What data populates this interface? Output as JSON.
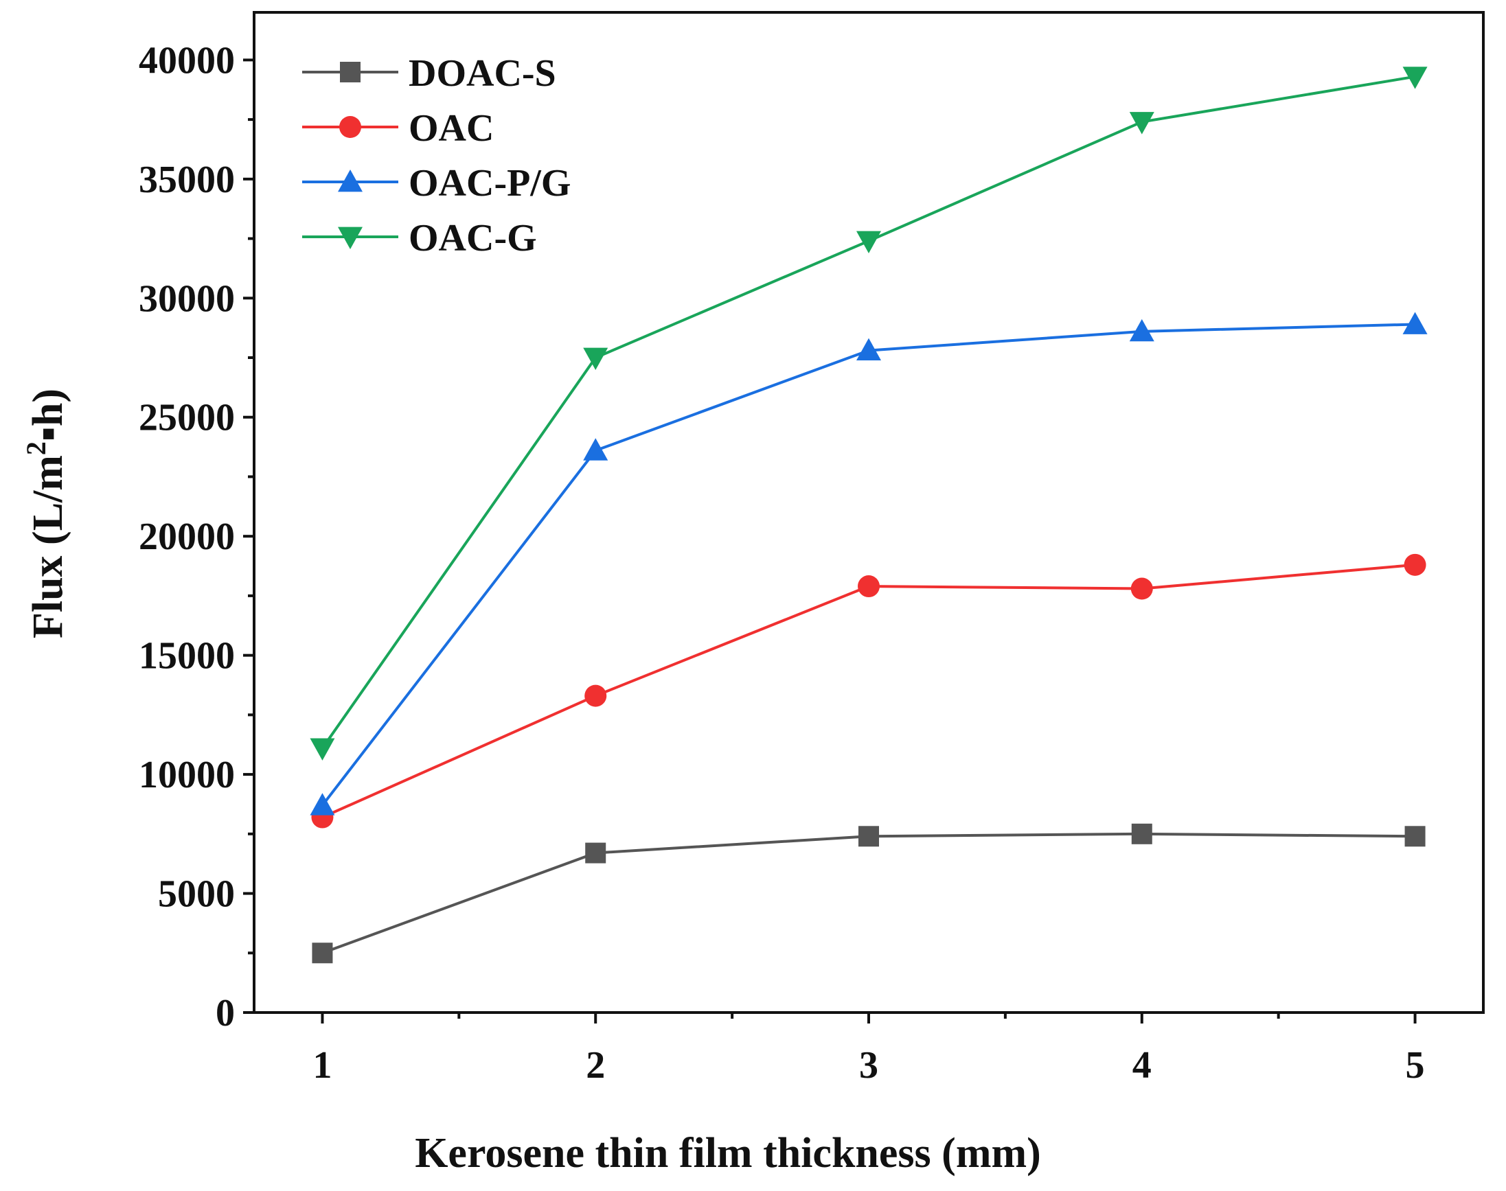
{
  "chart_data": {
    "type": "line",
    "title": "",
    "xlabel": "Kerosene thin film thickness (mm)",
    "ylabel": "Flux (L/m2·h)",
    "ylabel_parts": {
      "main": "Flux (L/m",
      "sup": "2",
      "sep": "▪",
      "end": "h)"
    },
    "x": [
      1,
      2,
      3,
      4,
      5
    ],
    "x_tick_labels": [
      "1",
      "2",
      "3",
      "4",
      "5"
    ],
    "xlim": [
      0.75,
      5.25
    ],
    "ylim": [
      0,
      42000
    ],
    "y_ticks": [
      0,
      5000,
      10000,
      15000,
      20000,
      25000,
      30000,
      35000,
      40000
    ],
    "y_tick_labels": [
      "0",
      "5000",
      "10000",
      "15000",
      "20000",
      "25000",
      "30000",
      "35000",
      "40000"
    ],
    "grid": false,
    "legend_position": "top-left",
    "series": [
      {
        "name": "DOAC-S",
        "color": "#555555",
        "marker": "square",
        "values": [
          2500,
          6700,
          7400,
          7500,
          7400
        ]
      },
      {
        "name": "OAC",
        "color": "#f03030",
        "marker": "circle",
        "values": [
          8200,
          13300,
          17900,
          17800,
          18800
        ]
      },
      {
        "name": "OAC-P/G",
        "color": "#1a6fe0",
        "marker": "triangle-up",
        "values": [
          8700,
          23600,
          27800,
          28600,
          28900
        ]
      },
      {
        "name": "OAC-G",
        "color": "#19a55a",
        "marker": "triangle-down",
        "values": [
          11100,
          27500,
          32400,
          37400,
          39300
        ]
      }
    ]
  }
}
